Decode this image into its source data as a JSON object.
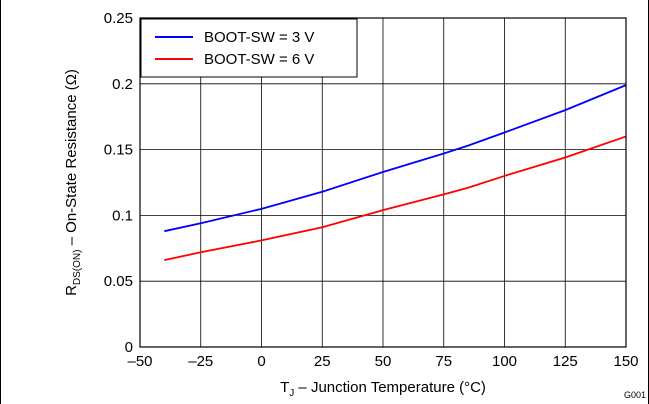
{
  "chart_data": {
    "type": "line",
    "xlabel": {
      "main": "T",
      "sub": "J",
      "rest": " – Junction Temperature (°C)"
    },
    "ylabel": {
      "main": "R",
      "sub": "DS(ON)",
      "rest": " – On-State Resistance (Ω)"
    },
    "xlim": [
      -50,
      150
    ],
    "ylim": [
      0,
      0.25
    ],
    "x_ticks": [
      -50,
      -25,
      0,
      25,
      50,
      75,
      100,
      125,
      150
    ],
    "x_tick_labels": [
      "–50",
      "–25",
      "0",
      "25",
      "50",
      "75",
      "100",
      "125",
      "150"
    ],
    "y_ticks": [
      0,
      0.05,
      0.1,
      0.15,
      0.2,
      0.25
    ],
    "y_tick_labels": [
      "0",
      "0.05",
      "0.1",
      "0.15",
      "0.2",
      "0.25"
    ],
    "grid": true,
    "legend_position": "top-left",
    "series": [
      {
        "name": "BOOT-SW = 3 V",
        "color": "#0000ff",
        "x": [
          -40,
          -25,
          0,
          25,
          50,
          75,
          85,
          100,
          125,
          150
        ],
        "y": [
          0.088,
          0.094,
          0.105,
          0.118,
          0.133,
          0.147,
          0.153,
          0.163,
          0.18,
          0.199
        ]
      },
      {
        "name": "BOOT-SW = 6 V",
        "color": "#ff0000",
        "x": [
          -40,
          -25,
          0,
          25,
          50,
          75,
          85,
          100,
          125,
          150
        ],
        "y": [
          0.066,
          0.072,
          0.081,
          0.091,
          0.104,
          0.116,
          0.121,
          0.13,
          0.144,
          0.16
        ]
      }
    ]
  },
  "figure_code": "G001"
}
